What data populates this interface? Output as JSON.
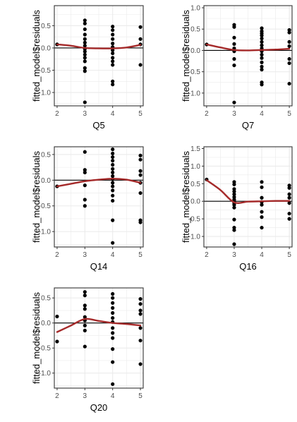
{
  "figure": {
    "ylabel": "fitted_model$residuals",
    "colors": {
      "point": "#000000",
      "smooth": "#a52a2a",
      "grid": "#ebebeb",
      "panel_border": "#333333",
      "zero_line": "#000000"
    }
  },
  "chart_data": [
    {
      "type": "scatter",
      "xlabel": "Q5",
      "ylabel": "fitted_model$residuals",
      "xlim": [
        1.9,
        5.1
      ],
      "ylim": [
        -1.3,
        0.95
      ],
      "x_ticks": [
        2,
        3,
        4,
        5
      ],
      "y_ticks": [
        -1.0,
        -0.5,
        0.0,
        0.5
      ],
      "y_tick_labels": [
        "-1.0",
        "-0.5",
        "0.0",
        "0.5"
      ],
      "hline": 0,
      "grid": true,
      "points": [
        [
          2,
          0.08
        ],
        [
          3,
          0.62
        ],
        [
          3,
          0.55
        ],
        [
          3,
          0.42
        ],
        [
          3,
          0.3
        ],
        [
          3,
          0.2
        ],
        [
          3,
          0.12
        ],
        [
          3,
          0.05
        ],
        [
          3,
          -0.02
        ],
        [
          3,
          -0.08
        ],
        [
          3,
          -0.15
        ],
        [
          3,
          -0.22
        ],
        [
          3,
          -0.3
        ],
        [
          3,
          -0.45
        ],
        [
          3,
          -0.52
        ],
        [
          3,
          -1.22
        ],
        [
          4,
          0.48
        ],
        [
          4,
          0.4
        ],
        [
          4,
          0.3
        ],
        [
          4,
          0.2
        ],
        [
          4,
          0.1
        ],
        [
          4,
          0.02
        ],
        [
          4,
          -0.05
        ],
        [
          4,
          -0.12
        ],
        [
          4,
          -0.22
        ],
        [
          4,
          -0.3
        ],
        [
          4,
          -0.38
        ],
        [
          4,
          -0.75
        ],
        [
          4,
          -0.82
        ],
        [
          5,
          0.47
        ],
        [
          5,
          0.2
        ],
        [
          5,
          0.08
        ],
        [
          5,
          -0.38
        ]
      ],
      "smooth": [
        [
          2,
          0.08
        ],
        [
          2.5,
          0.05
        ],
        [
          3,
          0.0
        ],
        [
          3.5,
          -0.01
        ],
        [
          4,
          -0.01
        ],
        [
          4.5,
          0.01
        ],
        [
          5,
          0.07
        ]
      ]
    },
    {
      "type": "scatter",
      "xlabel": "Q7",
      "ylabel": "fitted_model$residuals",
      "xlim": [
        1.9,
        5.1
      ],
      "ylim": [
        -1.3,
        1.05
      ],
      "x_ticks": [
        2,
        3,
        4,
        5
      ],
      "y_ticks": [
        -1.0,
        -0.5,
        0.0,
        0.5,
        1.0
      ],
      "y_tick_labels": [
        "-1.0",
        "-0.5",
        "0.0",
        "0.5",
        "1.0"
      ],
      "hline": 0,
      "grid": true,
      "points": [
        [
          2,
          0.14
        ],
        [
          3,
          0.6
        ],
        [
          3,
          0.55
        ],
        [
          3,
          0.3
        ],
        [
          3,
          0.15
        ],
        [
          3,
          0.05
        ],
        [
          3,
          -0.02
        ],
        [
          3,
          -0.2
        ],
        [
          3,
          -0.35
        ],
        [
          3,
          -1.22
        ],
        [
          4,
          0.52
        ],
        [
          4,
          0.45
        ],
        [
          4,
          0.4
        ],
        [
          4,
          0.35
        ],
        [
          4,
          0.28
        ],
        [
          4,
          0.2
        ],
        [
          4,
          0.12
        ],
        [
          4,
          0.05
        ],
        [
          4,
          -0.02
        ],
        [
          4,
          -0.1
        ],
        [
          4,
          -0.18
        ],
        [
          4,
          -0.28
        ],
        [
          4,
          -0.38
        ],
        [
          4,
          -0.45
        ],
        [
          4,
          -0.75
        ],
        [
          4,
          -0.8
        ],
        [
          5,
          0.48
        ],
        [
          5,
          0.42
        ],
        [
          5,
          0.2
        ],
        [
          5,
          0.1
        ],
        [
          5,
          -0.2
        ],
        [
          5,
          -0.3
        ],
        [
          5,
          -0.78
        ]
      ],
      "smooth": [
        [
          2,
          0.14
        ],
        [
          2.5,
          0.07
        ],
        [
          3,
          0.01
        ],
        [
          3.5,
          0.0
        ],
        [
          4,
          0.01
        ],
        [
          4.5,
          0.02
        ],
        [
          5,
          0.04
        ]
      ]
    },
    {
      "type": "scatter",
      "xlabel": "Q14",
      "ylabel": "fitted_model$residuals",
      "xlim": [
        1.9,
        5.1
      ],
      "ylim": [
        -1.3,
        0.65
      ],
      "x_ticks": [
        2,
        3,
        4,
        5
      ],
      "y_ticks": [
        -1.0,
        -0.5,
        0.0,
        0.5
      ],
      "y_tick_labels": [
        "-1.0",
        "-0.5",
        "0.0",
        "0.5"
      ],
      "hline": 0,
      "grid": true,
      "points": [
        [
          2,
          -0.12
        ],
        [
          3,
          0.55
        ],
        [
          3,
          0.2
        ],
        [
          3,
          0.15
        ],
        [
          3,
          -0.1
        ],
        [
          3,
          -0.38
        ],
        [
          3,
          -0.5
        ],
        [
          4,
          0.6
        ],
        [
          4,
          0.52
        ],
        [
          4,
          0.45
        ],
        [
          4,
          0.38
        ],
        [
          4,
          0.3
        ],
        [
          4,
          0.22
        ],
        [
          4,
          0.15
        ],
        [
          4,
          0.08
        ],
        [
          4,
          0.02
        ],
        [
          4,
          -0.05
        ],
        [
          4,
          -0.12
        ],
        [
          4,
          -0.2
        ],
        [
          4,
          -0.3
        ],
        [
          4,
          -0.4
        ],
        [
          4,
          -0.78
        ],
        [
          4,
          -1.22
        ],
        [
          5,
          0.48
        ],
        [
          5,
          0.4
        ],
        [
          5,
          0.18
        ],
        [
          5,
          0.1
        ],
        [
          5,
          -0.05
        ],
        [
          5,
          -0.25
        ],
        [
          5,
          -0.78
        ],
        [
          5,
          -0.82
        ]
      ],
      "smooth": [
        [
          2,
          -0.12
        ],
        [
          2.5,
          -0.07
        ],
        [
          3,
          -0.02
        ],
        [
          3.5,
          0.01
        ],
        [
          4,
          0.03
        ],
        [
          4.5,
          0.01
        ],
        [
          5,
          -0.05
        ]
      ]
    },
    {
      "type": "scatter",
      "xlabel": "Q16",
      "ylabel": "fitted_model$residuals",
      "xlim": [
        1.9,
        5.1
      ],
      "ylim": [
        -1.3,
        1.55
      ],
      "x_ticks": [
        2,
        3,
        4,
        5
      ],
      "y_ticks": [
        -1.0,
        -0.5,
        0.0,
        0.5,
        1.0,
        1.5
      ],
      "y_tick_labels": [
        "-1.0",
        "-0.5",
        "0.0",
        "0.5",
        "1.0",
        "1.5"
      ],
      "hline": 0,
      "grid": true,
      "points": [
        [
          2,
          0.62
        ],
        [
          3,
          0.55
        ],
        [
          3,
          0.48
        ],
        [
          3,
          0.35
        ],
        [
          3,
          0.28
        ],
        [
          3,
          0.2
        ],
        [
          3,
          0.12
        ],
        [
          3,
          0.05
        ],
        [
          3,
          0.0
        ],
        [
          3,
          -0.05
        ],
        [
          3,
          -0.1
        ],
        [
          3,
          -0.18
        ],
        [
          3,
          -0.52
        ],
        [
          3,
          -0.75
        ],
        [
          3,
          -0.82
        ],
        [
          3,
          -1.22
        ],
        [
          4,
          0.55
        ],
        [
          4,
          0.4
        ],
        [
          4,
          0.1
        ],
        [
          4,
          -0.02
        ],
        [
          4,
          -0.1
        ],
        [
          4,
          -0.3
        ],
        [
          4,
          -0.45
        ],
        [
          4,
          -0.75
        ],
        [
          5,
          0.45
        ],
        [
          5,
          0.38
        ],
        [
          5,
          0.2
        ],
        [
          5,
          0.1
        ],
        [
          5,
          -0.05
        ],
        [
          5,
          -0.35
        ],
        [
          5,
          -0.5
        ]
      ],
      "smooth": [
        [
          2,
          0.6
        ],
        [
          2.5,
          0.32
        ],
        [
          3,
          -0.03
        ],
        [
          3.5,
          -0.01
        ],
        [
          4,
          0.0
        ],
        [
          4.5,
          0.01
        ],
        [
          5,
          0.01
        ]
      ]
    },
    {
      "type": "scatter",
      "xlabel": "Q20",
      "ylabel": "fitted_model$residuals",
      "xlim": [
        1.9,
        5.1
      ],
      "ylim": [
        -1.3,
        0.7
      ],
      "x_ticks": [
        2,
        3,
        4,
        5
      ],
      "y_ticks": [
        -1.0,
        -0.5,
        0.0,
        0.5
      ],
      "y_tick_labels": [
        "-1.0",
        "-0.5",
        "0.0",
        "0.5"
      ],
      "hline": 0,
      "grid": true,
      "points": [
        [
          2,
          0.13
        ],
        [
          2,
          -0.37
        ],
        [
          3,
          0.62
        ],
        [
          3,
          0.55
        ],
        [
          3,
          0.35
        ],
        [
          3,
          0.28
        ],
        [
          3,
          0.12
        ],
        [
          3,
          0.05
        ],
        [
          3,
          -0.05
        ],
        [
          3,
          -0.15
        ],
        [
          3,
          -0.47
        ],
        [
          4,
          0.58
        ],
        [
          4,
          0.5
        ],
        [
          4,
          0.4
        ],
        [
          4,
          0.3
        ],
        [
          4,
          0.2
        ],
        [
          4,
          0.1
        ],
        [
          4,
          0.02
        ],
        [
          4,
          -0.1
        ],
        [
          4,
          -0.2
        ],
        [
          4,
          -0.3
        ],
        [
          4,
          -0.52
        ],
        [
          4,
          -0.78
        ],
        [
          4,
          -1.22
        ],
        [
          5,
          0.48
        ],
        [
          5,
          0.38
        ],
        [
          5,
          0.25
        ],
        [
          5,
          0.18
        ],
        [
          5,
          -0.1
        ],
        [
          5,
          -0.35
        ],
        [
          5,
          -0.82
        ]
      ],
      "smooth": [
        [
          2,
          -0.18
        ],
        [
          2.5,
          -0.05
        ],
        [
          3,
          0.08
        ],
        [
          3.5,
          0.04
        ],
        [
          4,
          0.0
        ],
        [
          4.5,
          -0.02
        ],
        [
          5,
          -0.05
        ]
      ]
    }
  ]
}
